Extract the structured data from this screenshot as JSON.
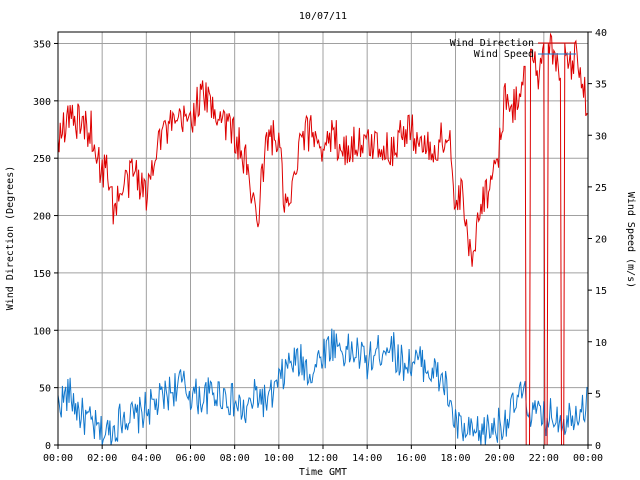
{
  "chart_data": {
    "type": "line",
    "title": "10/07/11",
    "xlabel": "Time GMT",
    "ylabel_left": "Wind Direction (Degrees)",
    "ylabel_right": "Wind Speed (m/s)",
    "x_ticks": [
      "00:00",
      "02:00",
      "04:00",
      "06:00",
      "08:00",
      "10:00",
      "12:00",
      "14:00",
      "16:00",
      "18:00",
      "20:00",
      "22:00",
      "00:00"
    ],
    "y_left_ticks": [
      "0",
      "50",
      "100",
      "150",
      "200",
      "250",
      "300",
      "350"
    ],
    "y_right_ticks": [
      "0",
      "5",
      "10",
      "15",
      "20",
      "25",
      "30",
      "35",
      "40"
    ],
    "xlim_hours": [
      0,
      24
    ],
    "ylim_left": [
      0,
      360
    ],
    "ylim_right": [
      0,
      40
    ],
    "grid": true,
    "legend_position": "top-right",
    "series": [
      {
        "name": "Wind Direction",
        "axis": "left",
        "color": "#dd0000",
        "hours": [
          0,
          0.5,
          1,
          1.5,
          2,
          2.25,
          2.5,
          3,
          3.5,
          4,
          4.5,
          5,
          5.5,
          6,
          6.5,
          7,
          7.5,
          8,
          8.5,
          9,
          9.5,
          10,
          10.25,
          10.5,
          11,
          11.5,
          12,
          12.5,
          13,
          13.5,
          14,
          14.5,
          15,
          15.5,
          16,
          16.5,
          17,
          17.5,
          17.75,
          18,
          18.25,
          18.5,
          18.75,
          19,
          19.5,
          20,
          20.25,
          20.5,
          20.75,
          21,
          21.1,
          21.25,
          21.5,
          21.75,
          22,
          22.1,
          22.25,
          22.5,
          22.75,
          22.85,
          23,
          23.25,
          23.5,
          23.75,
          24
        ],
        "values": [
          270,
          285,
          280,
          275,
          235,
          245,
          205,
          225,
          240,
          215,
          270,
          275,
          280,
          285,
          305,
          295,
          285,
          270,
          245,
          195,
          270,
          265,
          210,
          205,
          265,
          275,
          260,
          270,
          255,
          265,
          260,
          265,
          255,
          270,
          275,
          260,
          255,
          270,
          265,
          200,
          220,
          190,
          150,
          205,
          225,
          260,
          310,
          285,
          300,
          320,
          330,
          0,
          345,
          310,
          350,
          0,
          350,
          345,
          320,
          0,
          350,
          330,
          345,
          320,
          280
        ]
      },
      {
        "name": "Wind Speed",
        "axis": "right",
        "color": "#1177cc",
        "hours": [
          0,
          0.5,
          1,
          1.5,
          2,
          2.5,
          3,
          3.5,
          4,
          4.5,
          5,
          5.5,
          6,
          6.5,
          7,
          7.5,
          8,
          8.5,
          9,
          9.5,
          10,
          10.5,
          11,
          11.5,
          12,
          12.5,
          13,
          13.5,
          14,
          14.5,
          15,
          15.5,
          16,
          16.5,
          17,
          17.5,
          18,
          18.5,
          19,
          19.5,
          20,
          20.5,
          21,
          21.5,
          22,
          22.5,
          23,
          23.5,
          24
        ],
        "values": [
          4,
          5,
          3,
          2,
          1,
          1.5,
          3,
          2.5,
          3.5,
          4,
          5,
          6,
          5,
          4.5,
          5,
          5,
          4,
          3,
          5,
          4,
          6,
          8,
          8,
          7,
          9,
          10,
          9,
          9,
          8,
          9,
          10,
          8,
          8,
          8,
          7,
          6,
          2,
          1,
          1,
          1.5,
          2,
          3,
          5,
          3,
          2.5,
          3,
          2.5,
          3.5,
          4
        ]
      }
    ]
  }
}
